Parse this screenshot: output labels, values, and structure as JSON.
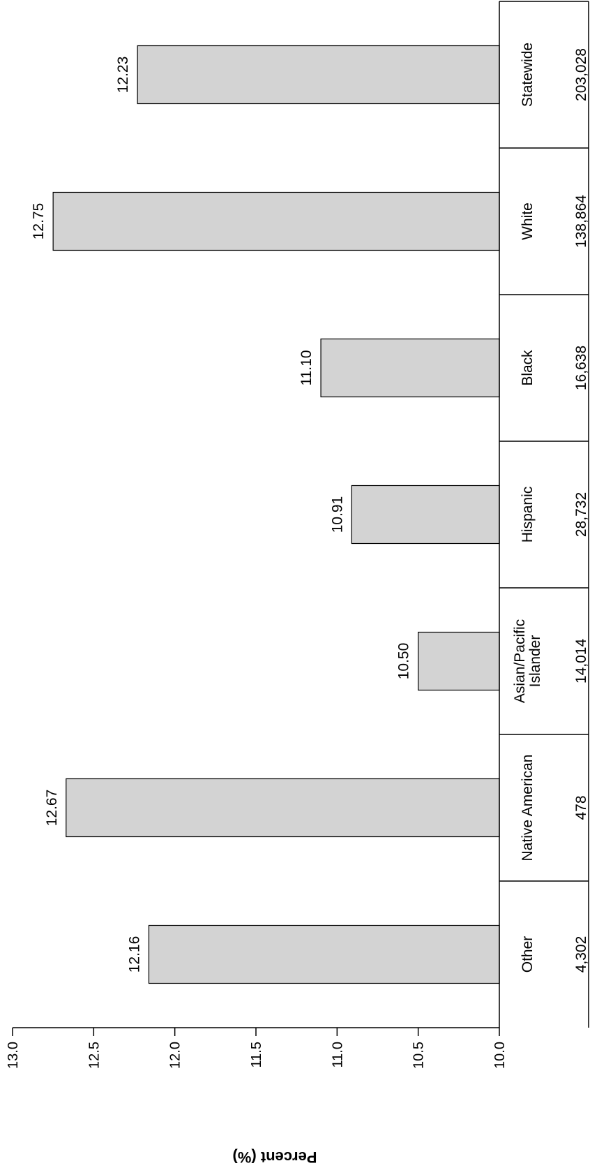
{
  "chart_data": {
    "type": "bar",
    "orientation": "rotated-90-clockwise",
    "categories": [
      "Statewide",
      "White",
      "Black",
      "Hispanic",
      "Asian/Pacific Islander",
      "Native American",
      "Other"
    ],
    "category_lines": [
      [
        "Statewide"
      ],
      [
        "White"
      ],
      [
        "Black"
      ],
      [
        "Hispanic"
      ],
      [
        "Asian/Pacific",
        "Islander"
      ],
      [
        "Native American"
      ],
      [
        "Other"
      ]
    ],
    "counts": [
      "203,028",
      "138,864",
      "16,638",
      "28,732",
      "14,014",
      "478",
      "4,302"
    ],
    "values": [
      12.23,
      12.75,
      11.1,
      10.91,
      10.5,
      12.67,
      12.16
    ],
    "value_labels": [
      "12.23",
      "12.75",
      "11.10",
      "10.91",
      "10.50",
      "12.67",
      "12.16"
    ],
    "ylabel": "Percent (%)",
    "ylim": [
      10.0,
      13.0
    ],
    "yticks": [
      "10.0",
      "10.5",
      "11.0",
      "11.5",
      "12.0",
      "12.5",
      "13.0"
    ],
    "grid": false,
    "bar_color": "#d3d3d3",
    "edge_color": "#000000"
  }
}
